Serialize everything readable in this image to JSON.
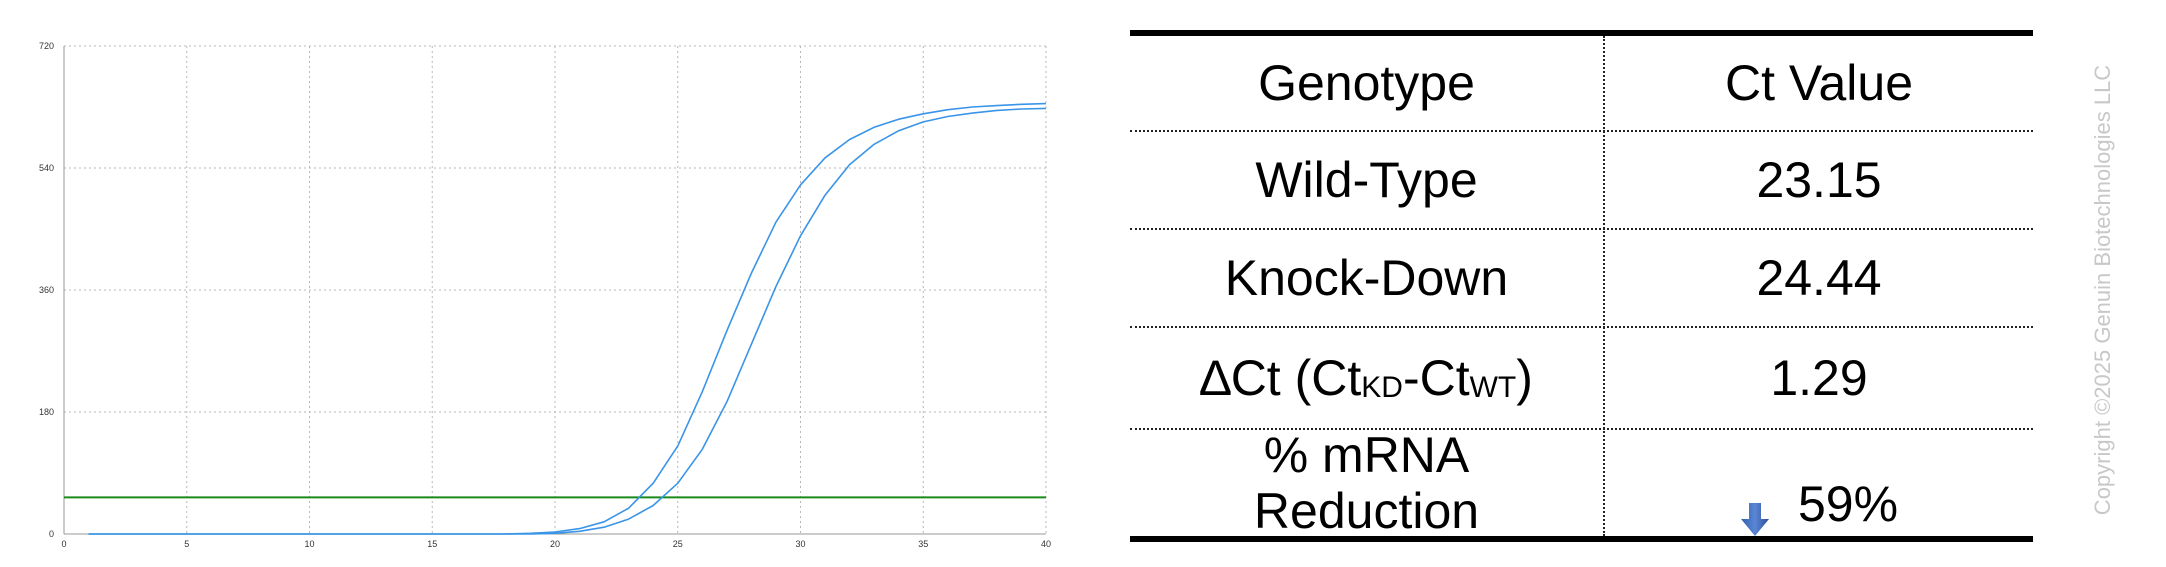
{
  "chart_data": {
    "type": "line",
    "title": "",
    "xlabel": "",
    "ylabel": "",
    "xlim": [
      0,
      40
    ],
    "ylim": [
      0,
      720
    ],
    "x_ticks": [
      0,
      5,
      10,
      15,
      20,
      25,
      30,
      35,
      40
    ],
    "y_ticks": [
      0,
      180,
      360,
      540,
      720
    ],
    "grid": true,
    "threshold": 54,
    "colors": {
      "curves": "#3a94e8",
      "threshold": "#1a8a1a"
    },
    "series": [
      {
        "x": [
          1,
          10,
          18,
          19,
          20,
          21,
          22,
          23,
          24,
          25,
          26,
          27,
          28,
          29,
          30,
          31,
          32,
          33,
          34,
          35,
          36,
          37,
          38,
          39,
          40
        ],
        "values": [
          0,
          0,
          0,
          1,
          3,
          8,
          18,
          38,
          75,
          130,
          210,
          300,
          385,
          460,
          515,
          555,
          582,
          600,
          612,
          620,
          626,
          630,
          632,
          634,
          635
        ]
      },
      {
        "x": [
          1,
          10,
          18,
          19,
          20,
          21,
          22,
          23,
          24,
          25,
          26,
          27,
          28,
          29,
          30,
          31,
          32,
          33,
          34,
          35,
          36,
          37,
          38,
          39,
          40
        ],
        "values": [
          0,
          0,
          0,
          0,
          1,
          4,
          10,
          22,
          42,
          75,
          125,
          195,
          280,
          365,
          440,
          500,
          545,
          575,
          595,
          608,
          616,
          621,
          625,
          627,
          628
        ]
      }
    ]
  },
  "table": {
    "headers": [
      "Genotype",
      "Ct Value"
    ],
    "rows": {
      "wt": {
        "label": "Wild-Type",
        "value": "23.15"
      },
      "kd": {
        "label": "Knock-Down",
        "value": "24.44"
      },
      "dct": {
        "label_pre": "∆Ct (Ct",
        "sub1": "KD",
        "label_mid": "-Ct",
        "sub2": "WT",
        "label_post": ")",
        "value": "1.29"
      },
      "reduction": {
        "label_line1": "% mRNA",
        "label_line2": "Reduction",
        "value": "59%",
        "icon": "down-arrow-icon"
      }
    }
  },
  "copyright": "Copyright ©2025 Genuin Biotechnologies LLC"
}
